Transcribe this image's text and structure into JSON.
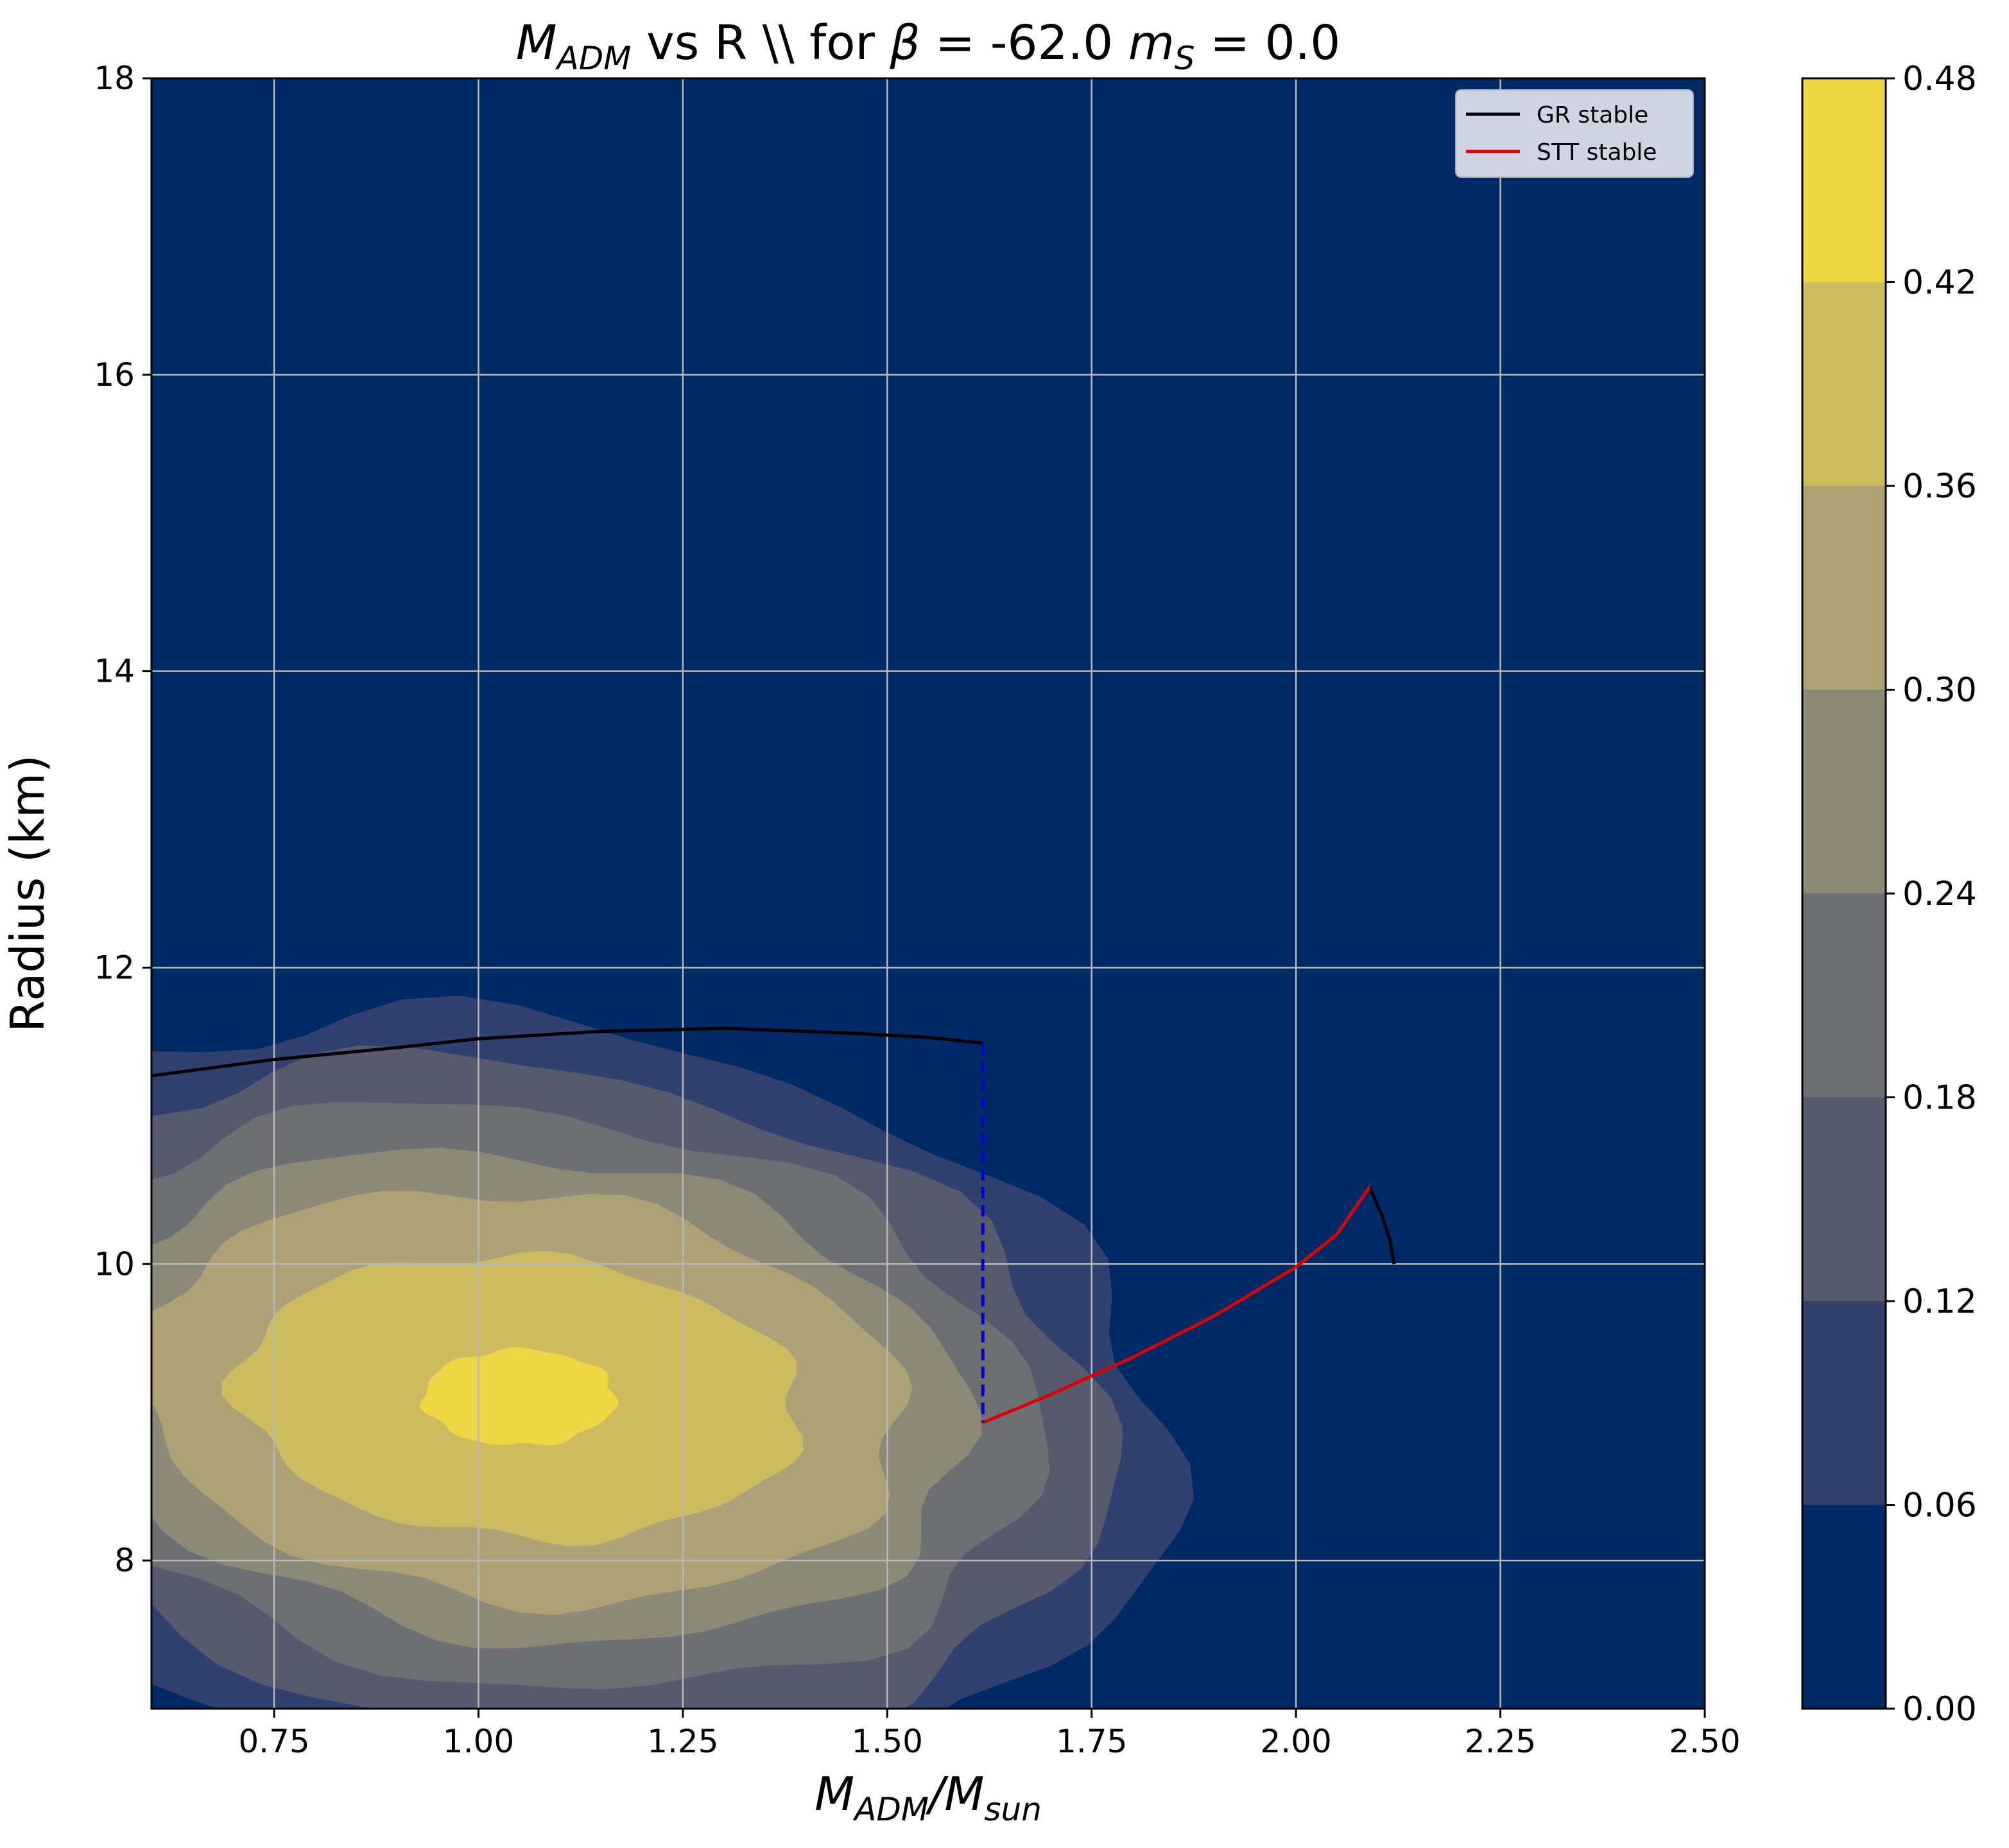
{
  "chart_data": {
    "type": "contour",
    "title_parts": {
      "m": "M",
      "m_sub": "ADM",
      "vs_text": " vs R \\\\ for ",
      "beta": "β",
      "eq_beta": " = -62.0 ",
      "ms": "m",
      "ms_sub": "S",
      "eq_ms": " = 0.0"
    },
    "xlabel_parts": {
      "m": "M",
      "m_sub": "ADM",
      "slash": "/M",
      "sun_sub": "sun"
    },
    "ylabel": "Radius (km)",
    "xlim": [
      0.6,
      2.5
    ],
    "ylim": [
      7,
      18
    ],
    "grid": true,
    "x_ticks": [
      "0.75",
      "1.00",
      "1.25",
      "1.50",
      "1.75",
      "2.00",
      "2.25",
      "2.50"
    ],
    "x_tick_values": [
      0.75,
      1.0,
      1.25,
      1.5,
      1.75,
      2.0,
      2.25,
      2.5
    ],
    "y_ticks": [
      "8",
      "10",
      "12",
      "14",
      "16",
      "18"
    ],
    "y_tick_values": [
      8,
      10,
      12,
      14,
      16,
      18
    ],
    "colorbar": {
      "ticks": [
        "0.00",
        "0.06",
        "0.12",
        "0.18",
        "0.24",
        "0.30",
        "0.36",
        "0.42",
        "0.48"
      ],
      "levels": [
        0.0,
        0.06,
        0.12,
        0.18,
        0.24,
        0.3,
        0.36,
        0.42,
        0.48
      ],
      "colors": [
        "#002a66",
        "#30416f",
        "#575a6d",
        "#6e6f73",
        "#8c8a77",
        "#ada275",
        "#ccbc5f",
        "#eed645"
      ]
    },
    "contour_peak": {
      "mass": 1.05,
      "radius": 9.1
    },
    "legend": {
      "position": "upper right",
      "entries": [
        {
          "label": "GR stable",
          "color": "#000000"
        },
        {
          "label": "STT stable",
          "color": "#e00000"
        }
      ]
    },
    "series": [
      {
        "name": "GR stable",
        "color": "#000000",
        "style": "solid",
        "points": [
          [
            0.6,
            11.27
          ],
          [
            0.75,
            11.38
          ],
          [
            0.9,
            11.46
          ],
          [
            1.0,
            11.52
          ],
          [
            1.15,
            11.57
          ],
          [
            1.3,
            11.59
          ],
          [
            1.45,
            11.56
          ],
          [
            1.55,
            11.53
          ],
          [
            1.617,
            11.49
          ]
        ]
      },
      {
        "name": "GR stable",
        "color": "#000000",
        "style": "solid",
        "points": [
          [
            2.09,
            10.52
          ],
          [
            2.105,
            10.33
          ],
          [
            2.115,
            10.16
          ],
          [
            2.12,
            10.0
          ]
        ]
      },
      {
        "name": "STT stable",
        "color": "#e00000",
        "style": "solid",
        "points": [
          [
            1.617,
            8.93
          ],
          [
            1.7,
            9.12
          ],
          [
            1.8,
            9.37
          ],
          [
            1.9,
            9.65
          ],
          [
            2.0,
            9.98
          ],
          [
            2.05,
            10.2
          ],
          [
            2.09,
            10.52
          ]
        ]
      },
      {
        "name": "",
        "color": "#0000dd",
        "style": "dashed",
        "points": [
          [
            1.617,
            11.49
          ],
          [
            1.617,
            8.93
          ]
        ]
      }
    ]
  }
}
